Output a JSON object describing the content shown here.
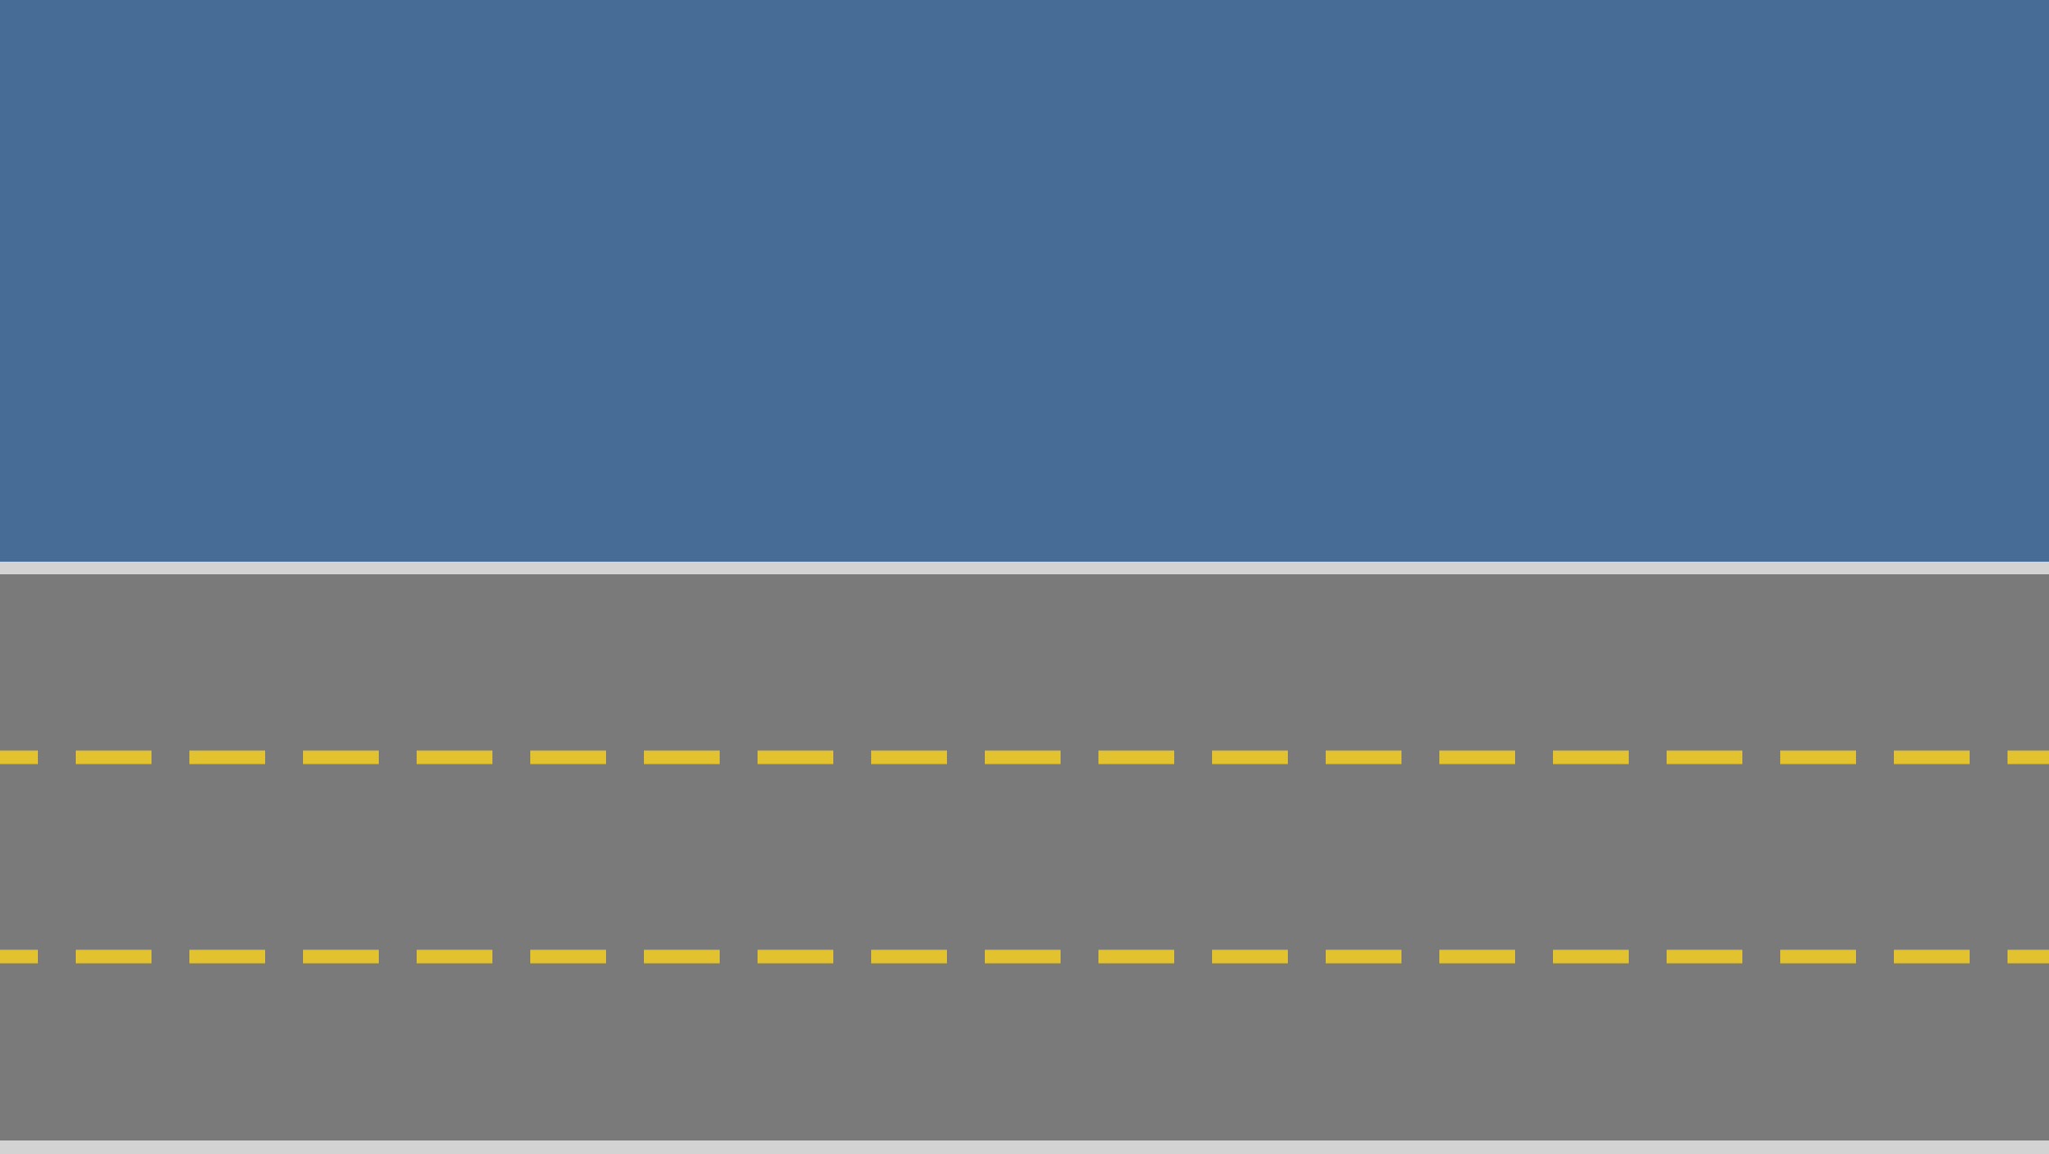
{
  "colors": {
    "water": "#476c95",
    "road": "#7a7a7a",
    "curb": "#d3d3d3",
    "lane_marking": "#e3c22f"
  },
  "lane_markings": {
    "style": "dashed",
    "line_count": 2
  }
}
